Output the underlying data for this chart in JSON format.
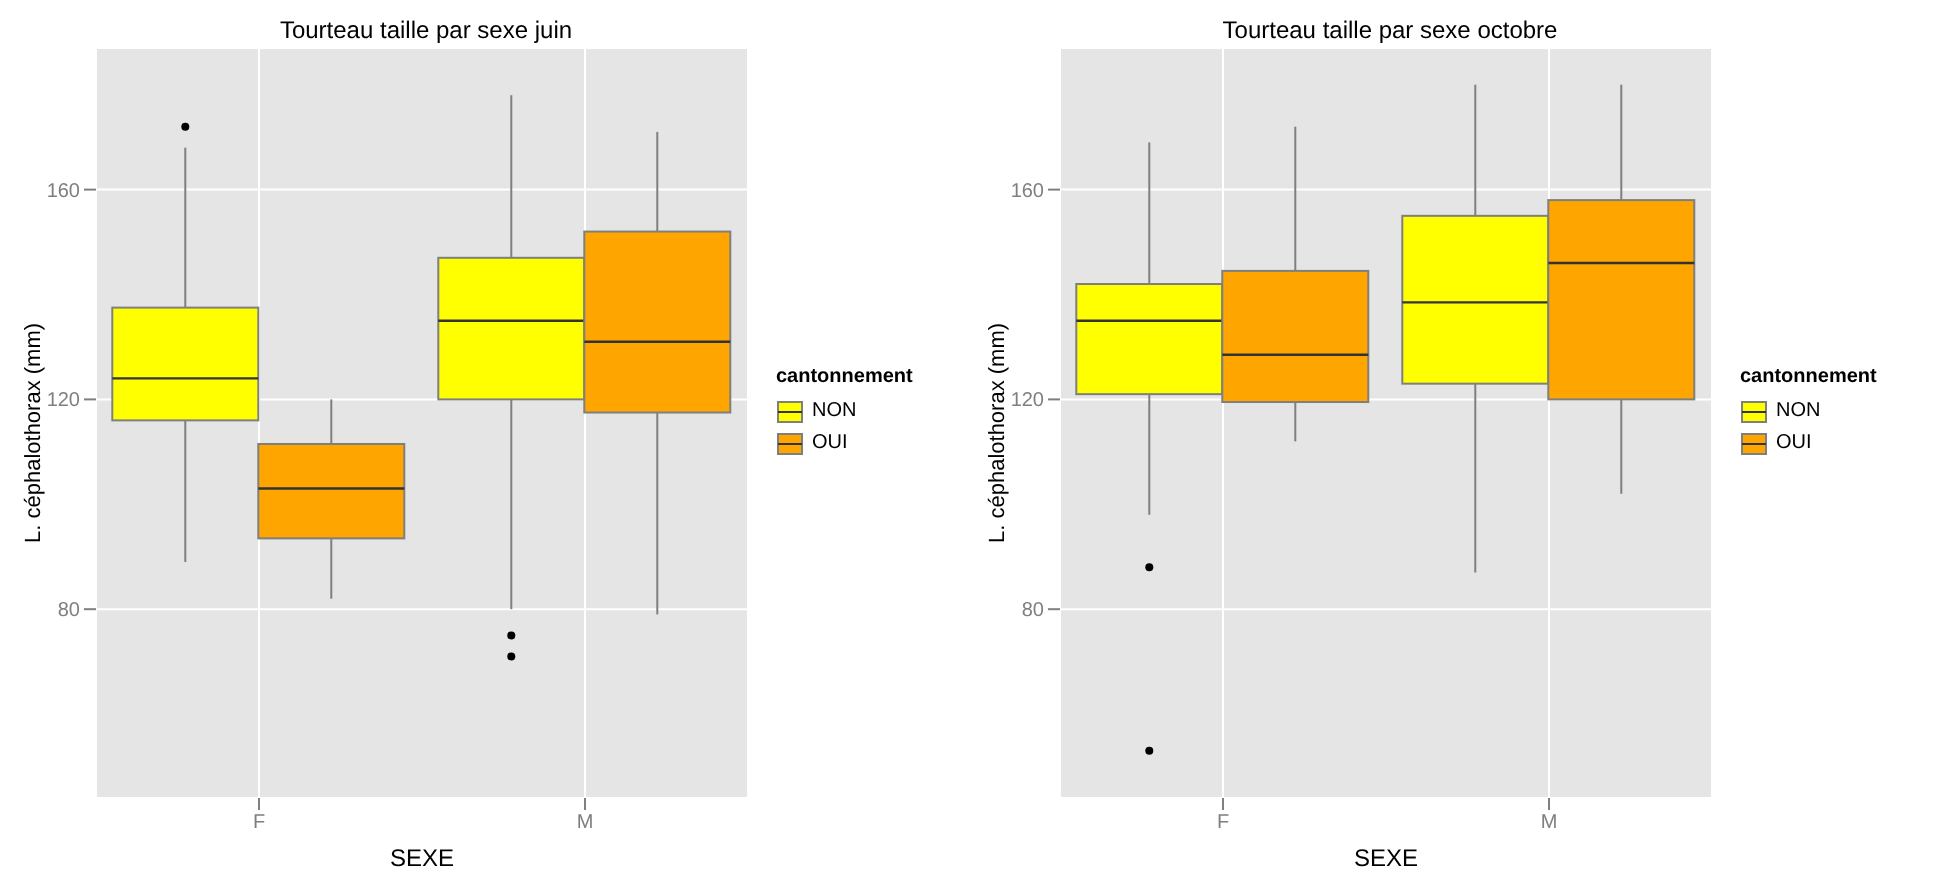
{
  "chart_data": [
    {
      "type": "box",
      "title": "Tourteau taille par sexe juin",
      "xlabel": "SEXE",
      "ylabel": "L. céphalothorax (mm)",
      "legend_title": "cantonnement",
      "legend": "right",
      "grid": true,
      "categories": [
        "F",
        "M"
      ],
      "ylim": [
        44,
        187
      ],
      "yticks": [
        80,
        120,
        160
      ],
      "series": [
        {
          "name": "NON",
          "color": "#ffff00",
          "boxes": [
            {
              "low": 89,
              "q1": 116,
              "median": 124,
              "q3": 137.5,
              "high": 168,
              "outliers": [
                172
              ]
            },
            {
              "low": 80,
              "q1": 120,
              "median": 135,
              "q3": 147,
              "high": 178,
              "outliers": [
                75,
                71
              ]
            }
          ]
        },
        {
          "name": "OUI",
          "color": "#ffa500",
          "boxes": [
            {
              "low": 82,
              "q1": 93.5,
              "median": 103,
              "q3": 111.5,
              "high": 120
            },
            {
              "low": 79,
              "q1": 117.5,
              "median": 131,
              "q3": 152,
              "high": 171
            }
          ]
        }
      ]
    },
    {
      "type": "box",
      "title": "Tourteau taille par sexe octobre",
      "xlabel": "SEXE",
      "ylabel": "L. céphalothorax (mm)",
      "legend_title": "cantonnement",
      "legend": "right",
      "grid": true,
      "categories": [
        "F",
        "M"
      ],
      "ylim": [
        44,
        187
      ],
      "yticks": [
        80,
        120,
        160
      ],
      "series": [
        {
          "name": "NON",
          "color": "#ffff00",
          "boxes": [
            {
              "low": 98,
              "q1": 121,
              "median": 135,
              "q3": 142,
              "high": 169,
              "outliers": [
                88,
                53
              ]
            },
            {
              "low": 87,
              "q1": 123,
              "median": 138.5,
              "q3": 155,
              "high": 180
            }
          ]
        },
        {
          "name": "OUI",
          "color": "#ffa500",
          "boxes": [
            {
              "low": 112,
              "q1": 119.5,
              "median": 128.5,
              "q3": 144.5,
              "high": 172
            },
            {
              "low": 102,
              "q1": 120,
              "median": 146,
              "q3": 158,
              "high": 180
            }
          ]
        }
      ]
    }
  ]
}
